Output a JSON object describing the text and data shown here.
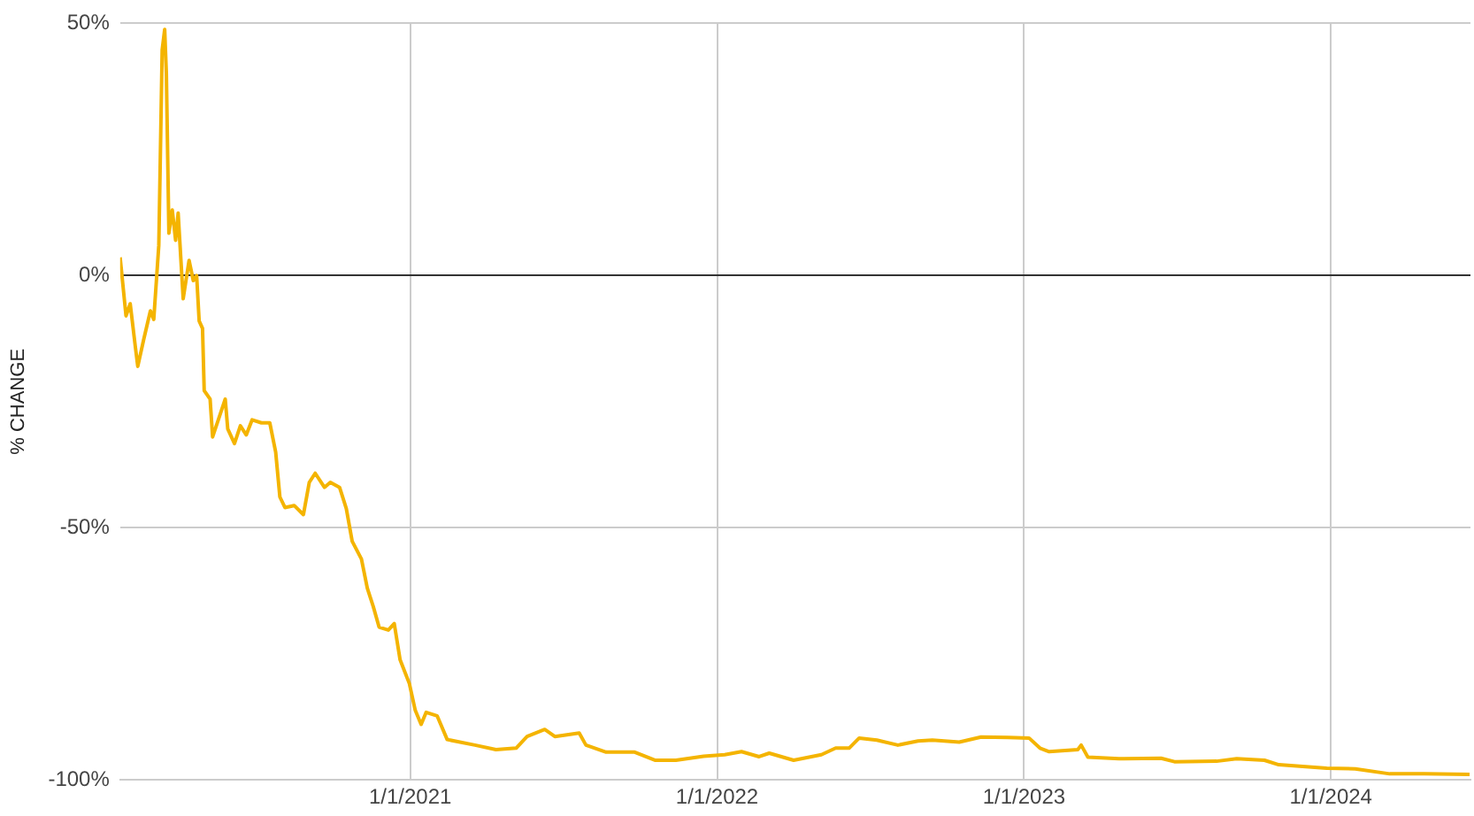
{
  "chart_data": {
    "type": "line",
    "ylabel": "% CHANGE",
    "x": [
      "2020-01-22",
      "2020-01-29",
      "2020-02-03",
      "2020-02-09",
      "2020-02-12",
      "2020-02-19",
      "2020-02-27",
      "2020-03-02",
      "2020-03-08",
      "2020-03-12",
      "2020-03-15",
      "2020-03-17",
      "2020-03-20",
      "2020-03-24",
      "2020-03-28",
      "2020-03-31",
      "2020-04-06",
      "2020-04-13",
      "2020-04-18",
      "2020-04-22",
      "2020-04-25",
      "2020-04-29",
      "2020-05-01",
      "2020-05-08",
      "2020-05-11",
      "2020-05-19",
      "2020-05-26",
      "2020-05-29",
      "2020-06-06",
      "2020-06-13",
      "2020-06-20",
      "2020-06-27",
      "2020-07-08",
      "2020-07-18",
      "2020-07-25",
      "2020-07-30",
      "2020-08-05",
      "2020-08-16",
      "2020-08-27",
      "2020-09-03",
      "2020-09-10",
      "2020-09-21",
      "2020-09-28",
      "2020-10-09",
      "2020-10-17",
      "2020-10-24",
      "2020-11-04",
      "2020-11-11",
      "2020-11-18",
      "2020-11-25",
      "2020-12-06",
      "2020-12-13",
      "2020-12-20",
      "2020-12-31",
      "2021-01-07",
      "2021-01-14",
      "2021-01-20",
      "2021-02-02",
      "2021-02-14",
      "2021-03-19",
      "2021-04-13",
      "2021-05-07",
      "2021-05-20",
      "2021-06-10",
      "2021-06-22",
      "2021-07-21",
      "2021-07-29",
      "2021-08-22",
      "2021-09-25",
      "2021-10-19",
      "2021-11-13",
      "2021-12-16",
      "2022-01-10",
      "2022-01-30",
      "2022-02-20",
      "2022-03-04",
      "2022-04-02",
      "2022-05-05",
      "2022-05-22",
      "2022-06-07",
      "2022-06-19",
      "2022-07-10",
      "2022-08-04",
      "2022-08-28",
      "2022-09-14",
      "2022-10-16",
      "2022-11-11",
      "2022-12-13",
      "2023-01-07",
      "2023-01-20",
      "2023-01-31",
      "2023-03-06",
      "2023-03-10",
      "2023-03-18",
      "2023-04-24",
      "2023-06-13",
      "2023-06-29",
      "2023-08-18",
      "2023-09-11",
      "2023-10-14",
      "2023-10-31",
      "2023-12-27",
      "2024-01-30",
      "2024-03-11",
      "2024-04-21",
      "2024-06-14"
    ],
    "series": [
      {
        "color": "#f4b400",
        "values": [
          3.6,
          -8,
          -5.6,
          -14,
          -18,
          -12.7,
          -7,
          -8.7,
          6,
          44.7,
          48.8,
          40,
          8.4,
          13,
          7,
          12.4,
          -4.6,
          3,
          -1,
          0,
          -9,
          -10.5,
          -22.8,
          -24.5,
          -32,
          -28,
          -24.5,
          -30.4,
          -33.3,
          -29.8,
          -31.6,
          -28.6,
          -29.2,
          -29.2,
          -35,
          -43.9,
          -46,
          -45.6,
          -47.4,
          -41,
          -39.2,
          -42,
          -41,
          -42,
          -46.2,
          -52.7,
          -56.2,
          -62,
          -65.6,
          -69.7,
          -70.3,
          -69,
          -76.2,
          -80.9,
          -86.2,
          -89,
          -86.6,
          -87.3,
          -92,
          -93.1,
          -94,
          -93.7,
          -91.4,
          -90,
          -91.4,
          -90.7,
          -93.1,
          -94.5,
          -94.5,
          -96.1,
          -96.1,
          -95.3,
          -95,
          -94.4,
          -95.4,
          -94.7,
          -96.1,
          -95,
          -93.7,
          -93.7,
          -91.7,
          -92.1,
          -93.1,
          -92.3,
          -92.1,
          -92.5,
          -91.5,
          -91.6,
          -91.7,
          -93.7,
          -94.4,
          -94,
          -93.1,
          -95.5,
          -95.8,
          -95.7,
          -96.4,
          -96.3,
          -95.8,
          -96.1,
          -97,
          -97.7,
          -97.8,
          -98.8,
          -98.8,
          -98.9
        ]
      }
    ],
    "xlim": [
      "2020-01-22",
      "2024-06-15"
    ],
    "xticks": [
      {
        "value": "2021-01-01",
        "label": "1/1/2021"
      },
      {
        "value": "2022-01-01",
        "label": "1/1/2022"
      },
      {
        "value": "2023-01-01",
        "label": "1/1/2023"
      },
      {
        "value": "2024-01-01",
        "label": "1/1/2024"
      }
    ],
    "ylim": [
      -100,
      50
    ],
    "yticks": [
      {
        "value": -100,
        "label": "-100%"
      },
      {
        "value": -50,
        "label": "-50%"
      },
      {
        "value": 0,
        "label": "0%"
      },
      {
        "value": 50,
        "label": "50%"
      }
    ],
    "grid": true,
    "legend": false,
    "marker": "none",
    "line_style": "solid"
  }
}
